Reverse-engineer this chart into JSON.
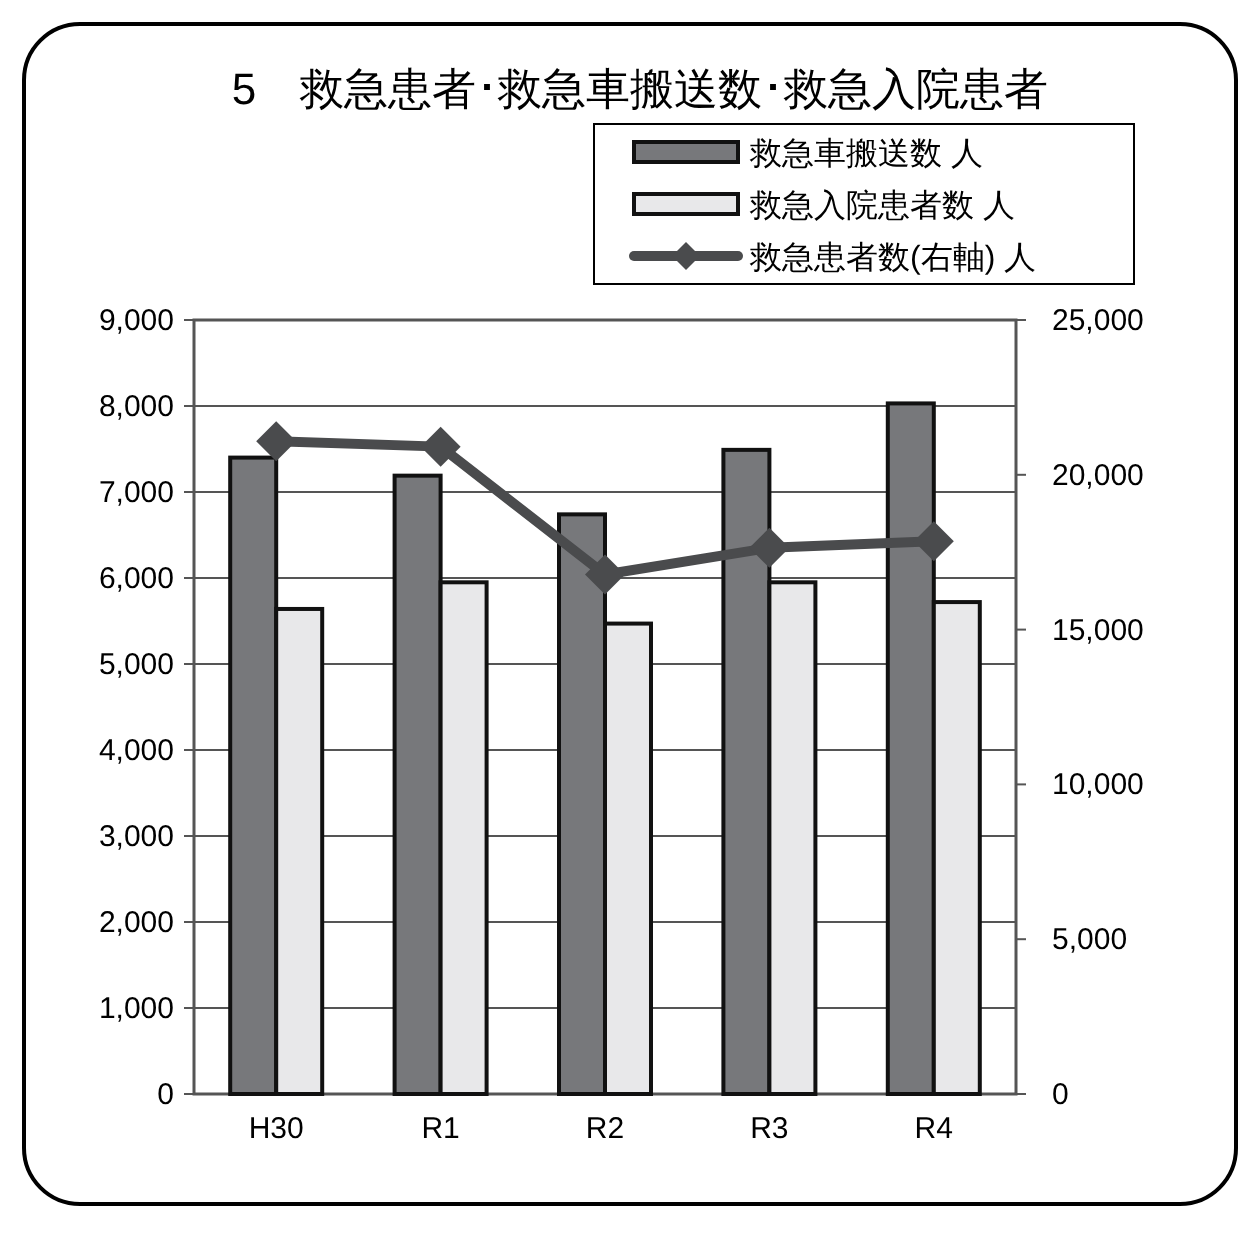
{
  "chart_data": {
    "type": "bar",
    "title": "5　救急患者･救急車搬送数･救急入院患者",
    "categories": [
      "H30",
      "R1",
      "R2",
      "R3",
      "R4"
    ],
    "series": [
      {
        "name": "救急車搬送数 人",
        "color": "#77787b",
        "values": [
          7400,
          7190,
          6740,
          7490,
          8030
        ]
      },
      {
        "name": "救急入院患者数 人",
        "color": "#e8e8ea",
        "values": [
          5640,
          5950,
          5470,
          5950,
          5720
        ]
      },
      {
        "name": "救急患者数(右軸) 人",
        "type": "line",
        "axis": "y2",
        "color": "#4a4b4d",
        "marker": "diamond",
        "values": [
          21080,
          20910,
          16780,
          17640,
          17850
        ]
      }
    ],
    "ylim": [
      0,
      9000
    ],
    "yticks": [
      0,
      {
        "value": 1000,
        "label": "1,000"
      },
      {
        "value": 2000,
        "label": "2,000"
      },
      {
        "value": 3000,
        "label": "3,000"
      },
      {
        "value": 4000,
        "label": "4,000"
      },
      {
        "value": 5000,
        "label": "5,000"
      },
      {
        "value": 6000,
        "label": "6,000"
      },
      {
        "value": 7000,
        "label": "7,000"
      },
      {
        "value": 8000,
        "label": "8,000"
      },
      {
        "value": 9000,
        "label": "9,000"
      }
    ],
    "y2lim": [
      0,
      25000
    ],
    "y2ticks": [
      0,
      {
        "value": 5000,
        "label": "5,000"
      },
      {
        "value": 10000,
        "label": "10,000"
      },
      {
        "value": 15000,
        "label": "15,000"
      },
      {
        "value": 20000,
        "label": "20,000"
      },
      {
        "value": 25000,
        "label": "25,000"
      }
    ],
    "grid": "y",
    "legend": "top right"
  }
}
